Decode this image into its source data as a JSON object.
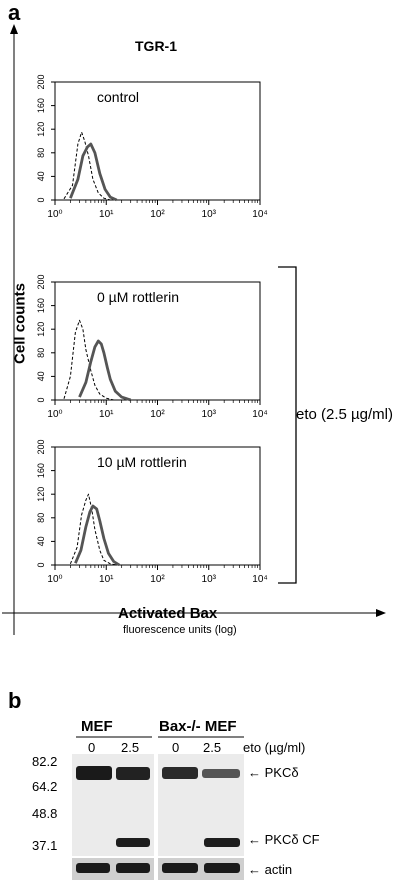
{
  "panel_a": {
    "letter": "a",
    "sample_title": "TGR-1",
    "y_axis_label": "Cell counts",
    "x_axis_label": "Activated Bax",
    "x_axis_sublabel": "fluorescence units (log)",
    "bracket_label": "eto (2.5 µg/ml)"
  },
  "chart_data": [
    {
      "type": "line",
      "title": "control",
      "xscale": "log",
      "xlim": [
        1,
        10000
      ],
      "xticks": [
        "10⁰",
        "10¹",
        "10²",
        "10³",
        "10⁴"
      ],
      "ylim": [
        0,
        200
      ],
      "yticks": [
        0,
        40,
        80,
        120,
        160,
        200
      ],
      "series": [
        {
          "style": "dashed",
          "x": [
            1.5,
            2.2,
            2.8,
            3.3,
            3.8,
            4.5,
            5.5,
            7,
            9,
            12
          ],
          "y": [
            2,
            25,
            95,
            115,
            100,
            75,
            35,
            12,
            3,
            0
          ]
        },
        {
          "style": "solid-thick",
          "x": [
            2,
            2.8,
            3.5,
            4.3,
            5,
            6,
            7.5,
            9.5,
            12,
            16
          ],
          "y": [
            3,
            35,
            75,
            90,
            95,
            80,
            45,
            18,
            5,
            0
          ]
        }
      ]
    },
    {
      "type": "line",
      "title": "0 µM rottlerin",
      "xscale": "log",
      "xlim": [
        1,
        10000
      ],
      "xticks": [
        "10⁰",
        "10¹",
        "10²",
        "10³",
        "10⁴"
      ],
      "ylim": [
        0,
        200
      ],
      "yticks": [
        0,
        40,
        80,
        120,
        160,
        200
      ],
      "series": [
        {
          "style": "dashed",
          "x": [
            1.5,
            2,
            2.5,
            3,
            3.5,
            4,
            5,
            6,
            7.5,
            10,
            14
          ],
          "y": [
            2,
            40,
            115,
            135,
            120,
            85,
            50,
            25,
            10,
            3,
            0
          ]
        },
        {
          "style": "solid-thick",
          "x": [
            3,
            4,
            5,
            6,
            7,
            8,
            9,
            10.5,
            12,
            15,
            20,
            30
          ],
          "y": [
            5,
            30,
            65,
            90,
            100,
            95,
            80,
            55,
            35,
            15,
            5,
            0
          ]
        }
      ]
    },
    {
      "type": "line",
      "title": "10 µM rottlerin",
      "xscale": "log",
      "xlim": [
        1,
        10000
      ],
      "xticks": [
        "10⁰",
        "10¹",
        "10²",
        "10³",
        "10⁴"
      ],
      "ylim": [
        0,
        200
      ],
      "yticks": [
        0,
        40,
        80,
        120,
        160,
        200
      ],
      "series": [
        {
          "style": "dashed",
          "x": [
            2,
            2.7,
            3.3,
            4,
            4.5,
            5.2,
            6,
            7.5,
            9,
            12,
            16
          ],
          "y": [
            2,
            30,
            85,
            110,
            120,
            95,
            60,
            25,
            8,
            2,
            0
          ]
        },
        {
          "style": "solid-thick",
          "x": [
            2.5,
            3.2,
            4,
            4.8,
            5.5,
            6.5,
            7.5,
            9,
            11,
            14,
            18
          ],
          "y": [
            3,
            25,
            65,
            90,
            100,
            95,
            75,
            45,
            20,
            6,
            0
          ]
        }
      ]
    }
  ],
  "panel_b": {
    "letter": "b",
    "group1": "MEF",
    "group2": "Bax-/- MEF",
    "lanes": [
      "0",
      "2.5",
      "0",
      "2.5"
    ],
    "conc_label": "eto (µg/ml)",
    "markers": [
      "82.2",
      "64.2",
      "48.8",
      "37.1"
    ],
    "band_labels": [
      "PKCδ",
      "PKCδ CF",
      "actin"
    ],
    "arrow": "←"
  },
  "colors": {
    "thick_line": "#555555",
    "blot_band": "#1a1a1a",
    "blot_bg": "#ebebeb"
  }
}
